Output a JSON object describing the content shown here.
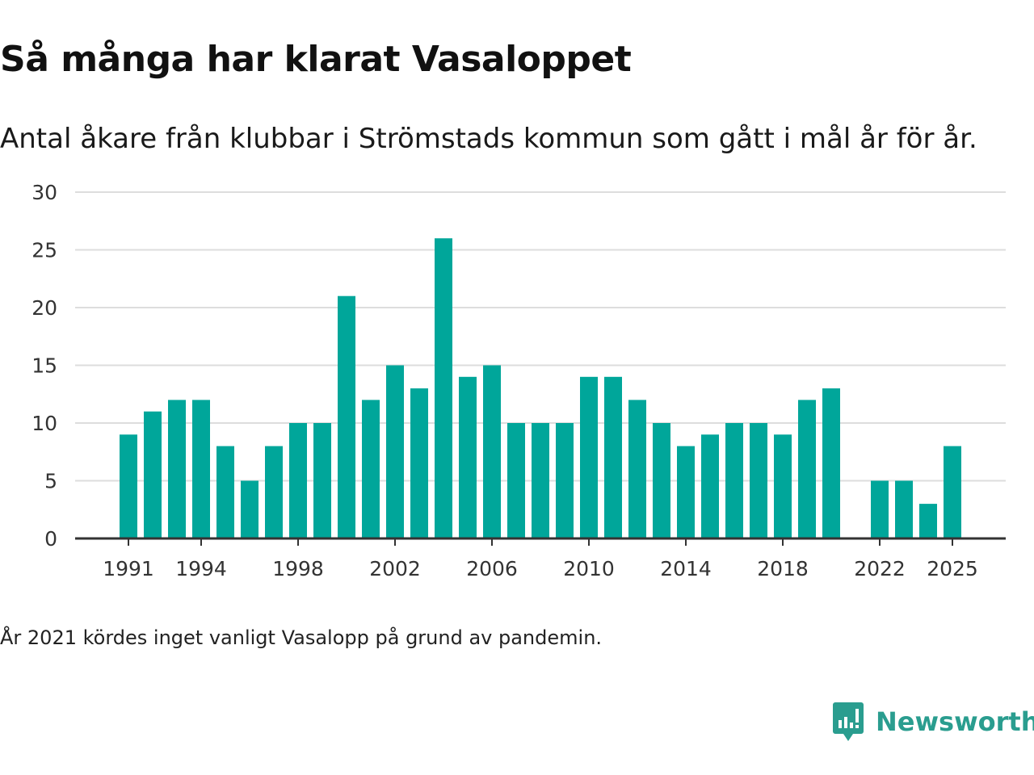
{
  "title": "Så många har klarat Vasaloppet",
  "subtitle": "Antal åkare från klubbar i Strömstads kommun som gått i mål år för år.",
  "note": "År 2021 kördes inget vanligt Vasalopp på grund av pandemin.",
  "brand": {
    "name": "Newsworthy",
    "icon": "newsworthy-logo-icon",
    "color": "#2a9d8f"
  },
  "colors": {
    "bar": "#00a69a",
    "grid": "#dddddd",
    "axis": "#333333"
  },
  "chart_data": {
    "type": "bar",
    "title": "Så många har klarat Vasaloppet",
    "xlabel": "",
    "ylabel": "",
    "ylim": [
      0,
      30
    ],
    "yticks": [
      0,
      5,
      10,
      15,
      20,
      25,
      30
    ],
    "xticks": [
      1991,
      1994,
      1998,
      2002,
      2006,
      2010,
      2014,
      2018,
      2022,
      2025
    ],
    "grid": true,
    "categories": [
      1991,
      1992,
      1993,
      1994,
      1995,
      1996,
      1997,
      1998,
      1999,
      2000,
      2001,
      2002,
      2003,
      2004,
      2005,
      2006,
      2007,
      2008,
      2009,
      2010,
      2011,
      2012,
      2013,
      2014,
      2015,
      2016,
      2017,
      2018,
      2019,
      2020,
      2021,
      2022,
      2023,
      2024,
      2025
    ],
    "values": [
      9,
      11,
      12,
      12,
      8,
      5,
      8,
      10,
      10,
      21,
      12,
      15,
      13,
      26,
      14,
      15,
      10,
      10,
      10,
      14,
      14,
      12,
      10,
      8,
      9,
      10,
      10,
      9,
      12,
      13,
      null,
      5,
      5,
      3,
      8
    ]
  }
}
